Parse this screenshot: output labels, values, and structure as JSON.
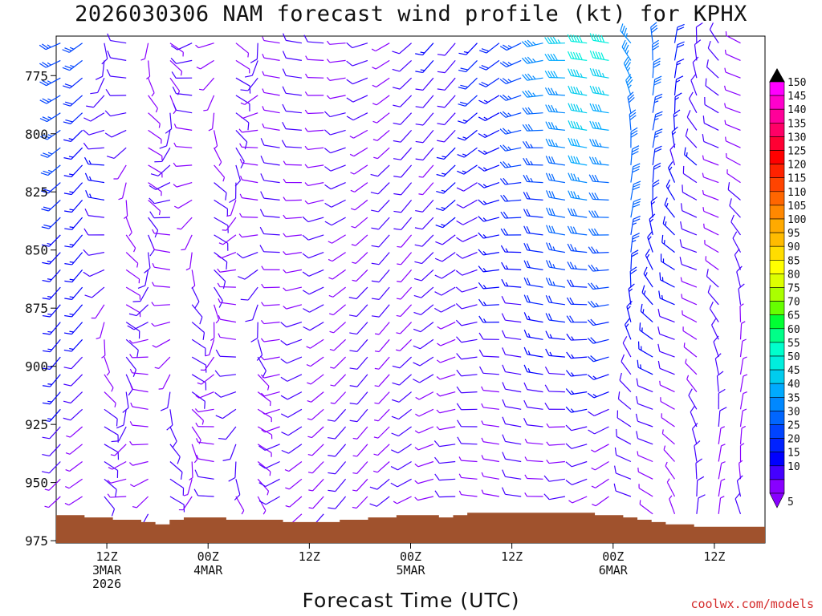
{
  "title": "2026030306 NAM forecast wind profile (kt) for KPHX",
  "chart_data": {
    "type": "wind-barb-time-height",
    "title": "2026030306 NAM forecast wind profile (kt) for KPHX",
    "xlabel": "Forecast Time (UTC)",
    "ylabel": "",
    "y_axis_units": "hPa",
    "y_range_hPa": [
      758,
      976
    ],
    "y_ticks": [
      "775",
      "800",
      "825",
      "850",
      "875",
      "900",
      "925",
      "950",
      "975"
    ],
    "x_range_hours": [
      6,
      90
    ],
    "x_ticks": [
      {
        "hour": 12,
        "lines": [
          "12Z",
          "3MAR",
          "2026"
        ]
      },
      {
        "hour": 24,
        "lines": [
          "00Z",
          "4MAR"
        ]
      },
      {
        "hour": 36,
        "lines": [
          "12Z"
        ]
      },
      {
        "hour": 48,
        "lines": [
          "00Z",
          "5MAR"
        ]
      },
      {
        "hour": 60,
        "lines": [
          "12Z"
        ]
      },
      {
        "hour": 72,
        "lines": [
          "00Z",
          "6MAR"
        ]
      },
      {
        "hour": 84,
        "lines": [
          "12Z"
        ]
      }
    ],
    "colorbar": {
      "labels": [
        "150",
        "145",
        "140",
        "135",
        "130",
        "125",
        "120",
        "115",
        "110",
        "105",
        "100",
        "95",
        "90",
        "85",
        "80",
        "75",
        "70",
        "65",
        "60",
        "55",
        "50",
        "45",
        "40",
        "35",
        "30",
        "25",
        "20",
        "15",
        "10",
        "5"
      ],
      "colors": [
        "#ff00ff",
        "#ff00cc",
        "#ff0099",
        "#ff0066",
        "#ff0033",
        "#ff0000",
        "#ff2200",
        "#ff4400",
        "#ff6600",
        "#ff8800",
        "#ffaa00",
        "#ffbb00",
        "#ffdd00",
        "#ffff00",
        "#ddff00",
        "#aaff00",
        "#66ff00",
        "#00ff33",
        "#00ff88",
        "#00ffcc",
        "#00eedd",
        "#00ccee",
        "#00aaff",
        "#0088ff",
        "#0066ff",
        "#0044ff",
        "#0022ff",
        "#0000ff",
        "#4400ff",
        "#8800ff"
      ]
    },
    "surface_pressure_hPa": [
      964,
      964,
      965,
      965,
      966,
      966,
      967,
      968,
      966,
      965,
      965,
      965,
      966,
      966,
      966,
      966,
      967,
      967,
      967,
      967,
      966,
      966,
      965,
      965,
      964,
      964,
      964,
      965,
      964,
      963,
      963,
      963,
      963,
      963,
      963,
      963,
      963,
      963,
      964,
      964,
      965,
      966,
      967,
      968,
      968,
      969,
      969,
      969,
      969,
      969
    ],
    "wind_field_description": "Mostly light winds (5-20 kt, purple) with stronger blue-to-cyan winds (25-45 kt) in the upper levels around 00Z-06Z 6MAR",
    "series": [
      {
        "name": "wind_speed_kt_at_775",
        "x_hours": [
          7,
          18,
          30,
          42,
          54,
          60,
          66,
          70,
          78,
          88
        ],
        "values": [
          22,
          8,
          7,
          7,
          12,
          18,
          30,
          40,
          22,
          8
        ]
      },
      {
        "name": "wind_speed_kt_at_850",
        "x_hours": [
          7,
          18,
          30,
          42,
          54,
          60,
          66,
          70,
          78,
          88
        ],
        "values": [
          15,
          6,
          6,
          8,
          14,
          18,
          25,
          30,
          18,
          8
        ]
      },
      {
        "name": "wind_speed_kt_at_925",
        "x_hours": [
          7,
          18,
          30,
          42,
          54,
          60,
          66,
          70,
          78,
          88
        ],
        "values": [
          14,
          5,
          6,
          6,
          10,
          14,
          16,
          14,
          12,
          6
        ]
      }
    ]
  },
  "credit": "coolwx.com/models"
}
